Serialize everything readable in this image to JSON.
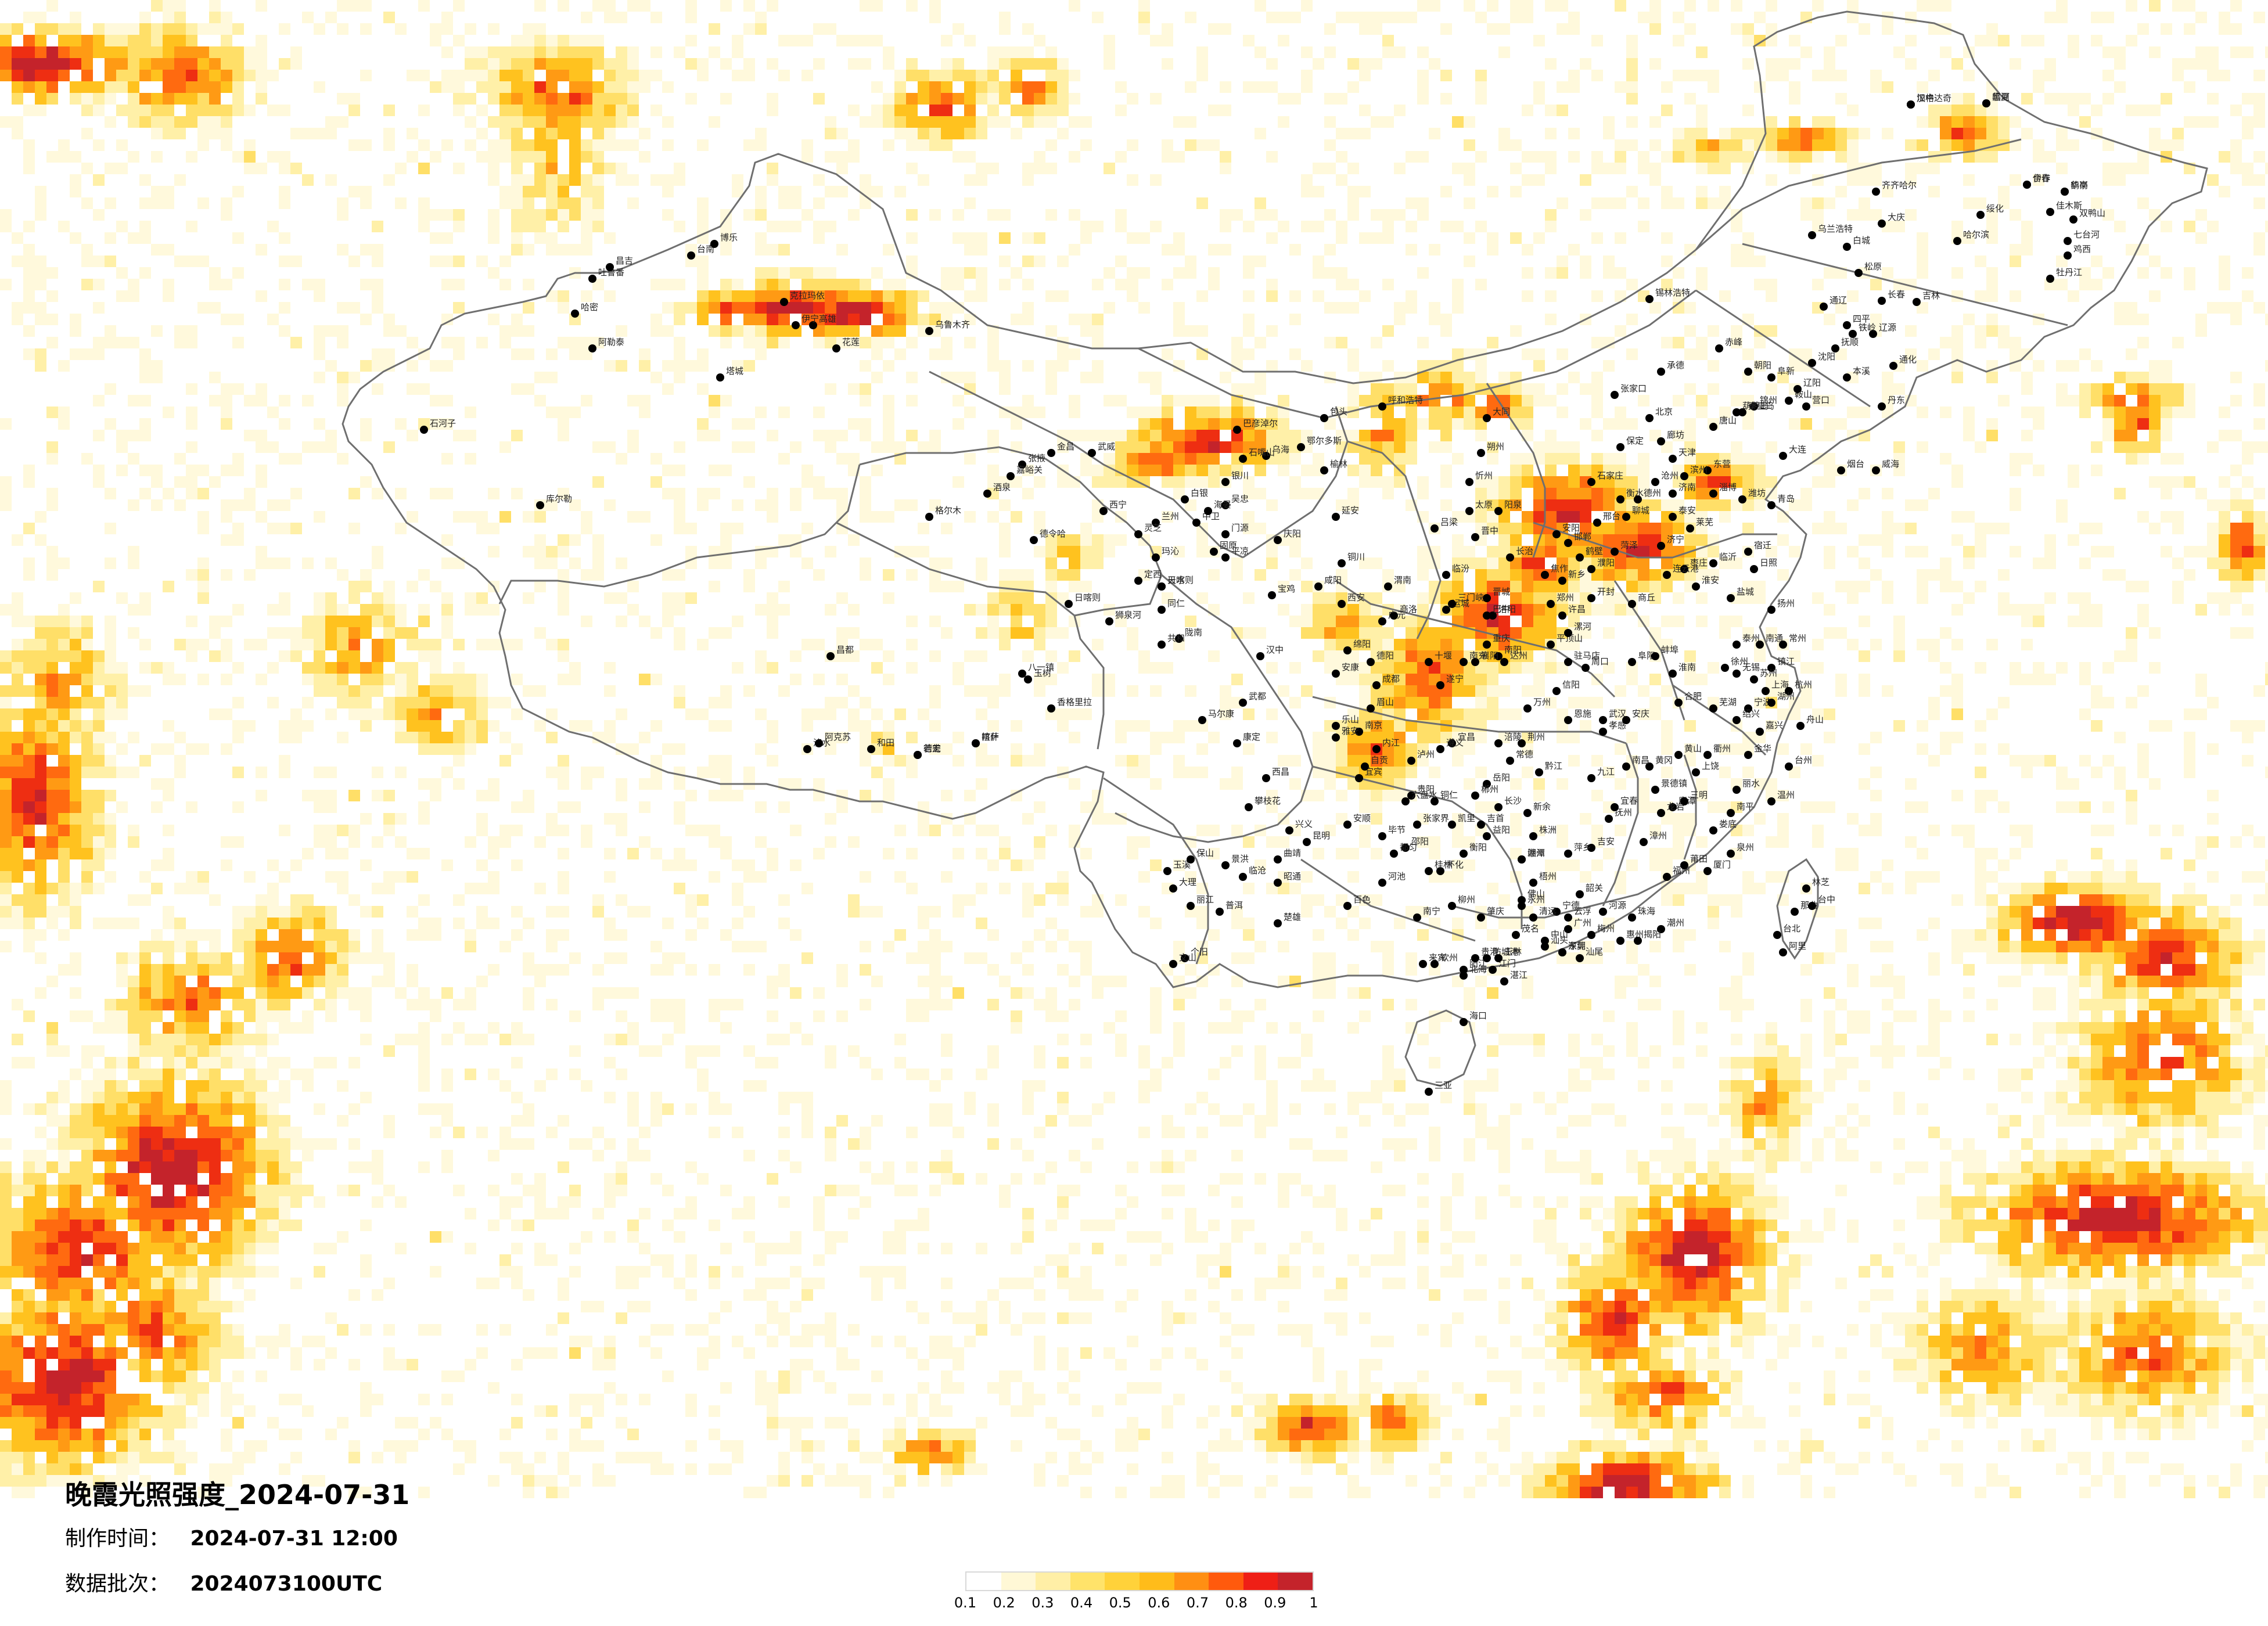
{
  "title": "晚霞光照强度_2024-07-31",
  "meta": {
    "made_label": "制作时间：",
    "made_value": "2024-07-31 12:00",
    "batch_label": "数据批次：",
    "batch_value": "2024073100UTC"
  },
  "legend": {
    "ticks": [
      "0.1",
      "0.2",
      "0.3",
      "0.4",
      "0.5",
      "0.6",
      "0.7",
      "0.8",
      "0.9",
      "1"
    ],
    "colors": [
      "#ffffff",
      "#fff8d6",
      "#ffefa6",
      "#ffe36a",
      "#ffd23a",
      "#ffbc1a",
      "#ff8f13",
      "#ff5a0d",
      "#ef1f16",
      "#c4232b"
    ]
  },
  "palette": {
    "v1": "#fff9dc",
    "v2": "#fff0a8",
    "v3": "#ffdf68",
    "v4": "#ffc21f",
    "v5": "#ff9a14",
    "v6": "#ff6a10",
    "v7": "#ee2e12",
    "v8": "#c4232b"
  },
  "cities": [
    "加格达奇",
    "黑河",
    "伊春",
    "鹤岗",
    "佳木斯",
    "双鸭山",
    "七台河",
    "鸡西",
    "牡丹江",
    "齐齐哈尔",
    "绥化",
    "哈尔滨",
    "大庆",
    "乌兰浩特",
    "白城",
    "松原",
    "长春",
    "吉林",
    "通辽",
    "四平",
    "辽源",
    "通化",
    "锡林浩特",
    "赤峰",
    "朝阳",
    "阜新",
    "沈阳",
    "抚顺",
    "本溪",
    "铁岭",
    "营口",
    "鞍山",
    "辽阳",
    "丹东",
    "锦州",
    "葫芦岛",
    "大连",
    "承德",
    "张家口",
    "北京",
    "天津",
    "唐山",
    "秦皇岛",
    "廊坊",
    "保定",
    "沧州",
    "石家庄",
    "衡水",
    "邢台",
    "邯郸",
    "大同",
    "朔州",
    "忻州",
    "太原",
    "阳泉",
    "吕梁",
    "晋中",
    "长治",
    "临汾",
    "运城",
    "晋城",
    "呼和浩特",
    "包头",
    "鄂尔多斯",
    "巴彦淖尔",
    "乌海",
    "银川",
    "石嘴山",
    "吴忠",
    "中卫",
    "固原",
    "榆林",
    "延安",
    "铜川",
    "咸阳",
    "西安",
    "宝鸡",
    "渭南",
    "汉中",
    "安康",
    "商洛",
    "兰州",
    "白银",
    "武威",
    "金昌",
    "张掖",
    "嘉峪关",
    "酒泉",
    "天水",
    "平凉",
    "庆阳",
    "定西",
    "陇南",
    "西宁",
    "德令哈",
    "格尔木",
    "玉树",
    "济南",
    "青岛",
    "烟台",
    "威海",
    "潍坊",
    "淄博",
    "东营",
    "滨州",
    "德州",
    "聊城",
    "泰安",
    "莱芜",
    "济宁",
    "枣庄",
    "临沂",
    "日照",
    "菏泽",
    "郑州",
    "开封",
    "洛阳",
    "平顶山",
    "安阳",
    "鹤壁",
    "新乡",
    "焦作",
    "濮阳",
    "许昌",
    "漯河",
    "三门峡",
    "南阳",
    "商丘",
    "信阳",
    "周口",
    "驻马店",
    "武汉",
    "十堰",
    "襄阳",
    "宜昌",
    "荆州",
    "黄冈",
    "孝感",
    "恩施",
    "南京",
    "徐州",
    "连云港",
    "宿迁",
    "淮安",
    "盐城",
    "扬州",
    "泰州",
    "南通",
    "镇江",
    "常州",
    "无锡",
    "苏州",
    "上海",
    "杭州",
    "宁波",
    "嘉兴",
    "湖州",
    "绍兴",
    "舟山",
    "金华",
    "衢州",
    "台州",
    "温州",
    "丽水",
    "合肥",
    "阜阳",
    "蚌埠",
    "淮南",
    "芜湖",
    "安庆",
    "黄山",
    "南昌",
    "九江",
    "景德镇",
    "上饶",
    "鹰潭",
    "抚州",
    "宜春",
    "吉安",
    "赣州",
    "萍乡",
    "新余",
    "长沙",
    "岳阳",
    "常德",
    "益阳",
    "株洲",
    "湘潭",
    "衡阳",
    "邵阳",
    "怀化",
    "永州",
    "郴州",
    "张家界",
    "吉首",
    "娄底",
    "福州",
    "厦门",
    "泉州",
    "莆田",
    "漳州",
    "龙岩",
    "三明",
    "南平",
    "宁德",
    "广州",
    "深圳",
    "珠海",
    "汕头",
    "佛山",
    "韶关",
    "河源",
    "梅州",
    "惠州",
    "汕尾",
    "东莞",
    "中山",
    "江门",
    "阳江",
    "湛江",
    "茂名",
    "肇庆",
    "清远",
    "潮州",
    "揭阳",
    "云浮",
    "南宁",
    "柳州",
    "桂林",
    "梧州",
    "北海",
    "防城港",
    "钦州",
    "贵港",
    "玉林",
    "百色",
    "河池",
    "来宾",
    "海口",
    "三亚",
    "成都",
    "绵阳",
    "德阳",
    "广元",
    "遂宁",
    "南充",
    "达州",
    "巴中",
    "雅安",
    "眉山",
    "乐山",
    "宜宾",
    "泸州",
    "内江",
    "自贡",
    "攀枝花",
    "西昌",
    "康定",
    "马尔康",
    "重庆",
    "万州",
    "涪陵",
    "黔江",
    "贵阳",
    "遵义",
    "六盘水",
    "安顺",
    "毕节",
    "铜仁",
    "凯里",
    "都匀",
    "兴义",
    "昆明",
    "曲靖",
    "玉溪",
    "保山",
    "昭通",
    "丽江",
    "普洱",
    "临沧",
    "楚雄",
    "个旧",
    "文山",
    "景洪",
    "大理",
    "德宏",
    "泸水",
    "香格里拉",
    "拉萨",
    "日喀则",
    "昌都",
    "林芝",
    "那曲",
    "阿里",
    "台北",
    "台中",
    "高雄",
    "台南",
    "花莲",
    "乌鲁木齐",
    "克拉玛依",
    "吐鲁番",
    "哈密",
    "昌吉",
    "博乐",
    "伊宁",
    "塔城",
    "阿勒泰",
    "石河子",
    "库尔勒",
    "阿克苏",
    "喀什",
    "和田",
    "若羌",
    "八一镇",
    "狮泉河",
    "日喀则",
    "灵芝",
    "玛沁",
    "同仁",
    "共和",
    "海晏",
    "门源",
    "武都",
    "汉中",
    "临夏",
    "合作",
    "华亭"
  ]
}
